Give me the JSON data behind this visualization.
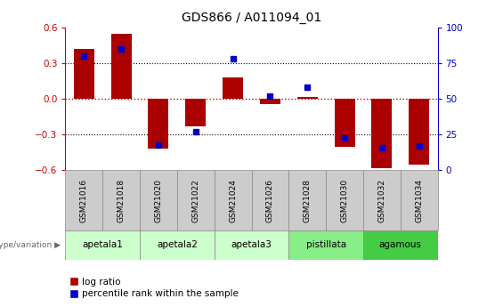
{
  "title": "GDS866 / A011094_01",
  "samples": [
    "GSM21016",
    "GSM21018",
    "GSM21020",
    "GSM21022",
    "GSM21024",
    "GSM21026",
    "GSM21028",
    "GSM21030",
    "GSM21032",
    "GSM21034"
  ],
  "log_ratio": [
    0.42,
    0.55,
    -0.42,
    -0.23,
    0.18,
    -0.04,
    0.02,
    -0.4,
    -0.58,
    -0.55
  ],
  "percentile_rank": [
    80,
    85,
    18,
    27,
    78,
    52,
    58,
    23,
    16,
    17
  ],
  "ylim": [
    -0.6,
    0.6
  ],
  "yticks_left": [
    -0.6,
    -0.3,
    0.0,
    0.3,
    0.6
  ],
  "yticks_right": [
    0,
    25,
    50,
    75,
    100
  ],
  "bar_color": "#aa0000",
  "dot_color": "#0000cc",
  "grid_color": "#000000",
  "zero_line_color": "#cc0000",
  "axis_left_color": "#cc0000",
  "axis_right_color": "#0000cc",
  "background_color": "#ffffff",
  "legend_red_label": "log ratio",
  "legend_blue_label": "percentile rank within the sample",
  "group_labels": [
    "apetala1",
    "apetala2",
    "apetala3",
    "pistillata",
    "agamous"
  ],
  "group_colors": [
    "#ccffcc",
    "#ccffcc",
    "#ccffcc",
    "#88ee88",
    "#44cc44"
  ],
  "group_starts": [
    0,
    2,
    4,
    6,
    8
  ],
  "group_ends": [
    2,
    4,
    6,
    8,
    10
  ],
  "sample_box_color": "#cccccc",
  "sample_box_edge": "#888888",
  "group_box_edge": "#888888"
}
